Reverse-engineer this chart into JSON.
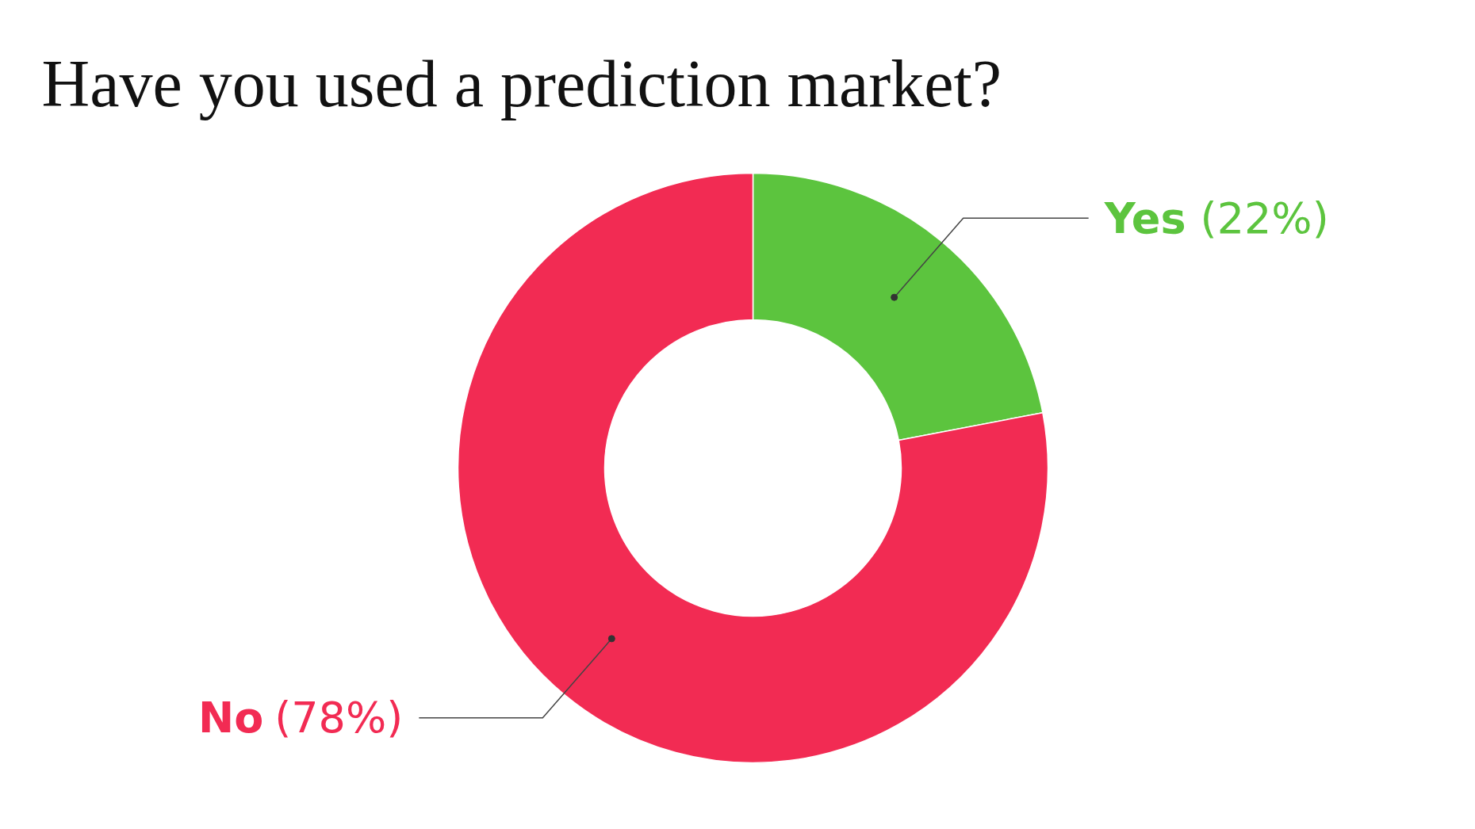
{
  "chart_data": {
    "type": "donut",
    "title": "Have you used a prediction market?",
    "categories": [
      "Yes",
      "No"
    ],
    "values": [
      22,
      78
    ],
    "colors": [
      "#5cc43e",
      "#f22b53"
    ],
    "value_labels": [
      "(22%)",
      "(78%)"
    ]
  }
}
